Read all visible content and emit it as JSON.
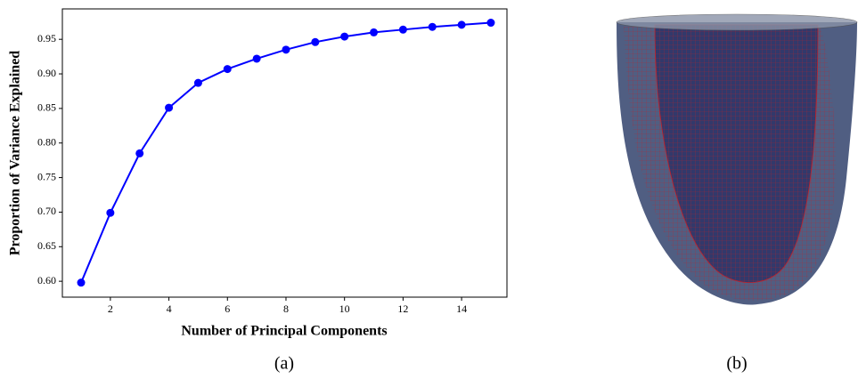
{
  "chart_data": {
    "type": "line",
    "x_label": "Number of Principal Components",
    "y_label": "Proportion of Variance Explained",
    "x": [
      1,
      2,
      3,
      4,
      5,
      6,
      7,
      8,
      9,
      10,
      11,
      12,
      13,
      14,
      15
    ],
    "series": [
      {
        "color": "#0000ff",
        "values": [
          0.598,
          0.699,
          0.785,
          0.851,
          0.887,
          0.907,
          0.922,
          0.935,
          0.946,
          0.954,
          0.96,
          0.964,
          0.968,
          0.971,
          0.974
        ]
      }
    ],
    "xlim": [
      0.36,
      15.55
    ],
    "xticks": [
      2,
      4,
      6,
      8,
      10,
      12,
      14
    ],
    "ylim": [
      0.577,
      0.994
    ],
    "yticks": [
      {
        "value": 0.6,
        "label": "0.60"
      },
      {
        "value": 0.65,
        "label": "0.65"
      },
      {
        "value": 0.7,
        "label": "0.70"
      },
      {
        "value": 0.75,
        "label": "0.75"
      },
      {
        "value": 0.8,
        "label": "0.80"
      },
      {
        "value": 0.85,
        "label": "0.85"
      },
      {
        "value": 0.9,
        "label": "0.90"
      },
      {
        "value": 0.95,
        "label": "0.95"
      }
    ],
    "grid": false
  },
  "figure": {
    "captions": [
      "(a)",
      "(b)"
    ]
  }
}
